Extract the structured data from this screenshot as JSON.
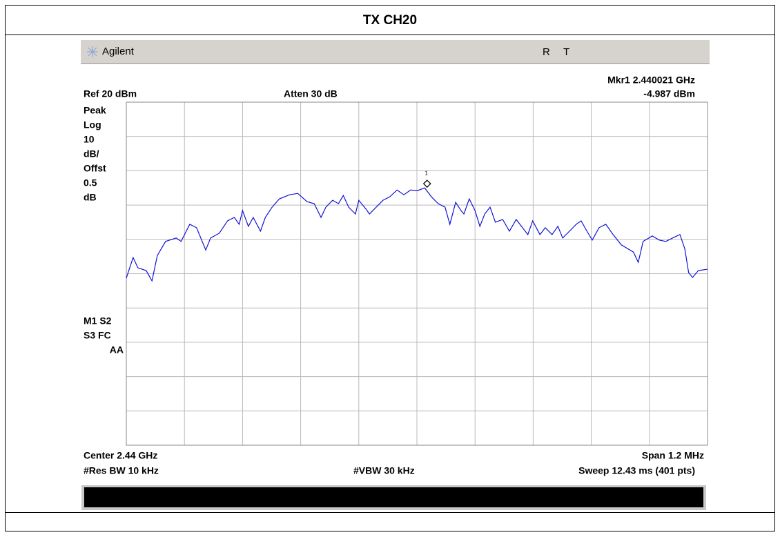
{
  "header": {
    "title": "TX CH20"
  },
  "instrument": {
    "brand": "Agilent",
    "status": [
      "R",
      "T"
    ],
    "marker_readout": "Mkr1  2.440021 GHz",
    "ref_level": "Ref 20 dBm",
    "attenuation": "Atten 30 dB",
    "marker_value": "-4.987 dBm",
    "left_panel": [
      "Peak",
      "Log",
      "10",
      "dB/",
      "Offst",
      "0.5",
      "dB"
    ],
    "left_status": [
      "M1  S2",
      "S3  FC",
      "AA"
    ],
    "center": "Center 2.44 GHz",
    "span": "Span 1.2 MHz",
    "rbw": "#Res BW 10 kHz",
    "vbw": "#VBW 30 kHz",
    "sweep": "Sweep 12.43 ms (401 pts)"
  },
  "trace": {
    "xlim": [
      -600,
      600
    ],
    "ref_level": 20,
    "db_per_div": 10,
    "x_khz": [
      -600,
      -586,
      -576,
      -559,
      -547,
      -536,
      -519,
      -497,
      -487,
      -469,
      -455,
      -436,
      -426,
      -408,
      -391,
      -377,
      -367,
      -360,
      -348,
      -338,
      -323,
      -313,
      -299,
      -284,
      -263,
      -246,
      -227,
      -212,
      -198,
      -188,
      -174,
      -162,
      -152,
      -141,
      -127,
      -120,
      -105,
      -98,
      -84,
      -70,
      -56,
      -41,
      -27,
      -13,
      1,
      16,
      30,
      44,
      58,
      68,
      80,
      91,
      97,
      108,
      120,
      130,
      140,
      151,
      162,
      177,
      191,
      205,
      218,
      229,
      239,
      254,
      265,
      279,
      291,
      301,
      315,
      329,
      339,
      351,
      362,
      376,
      390,
      405,
      422,
      447,
      457,
      467,
      486,
      500,
      514,
      528,
      543,
      553,
      561,
      569,
      581,
      600
    ],
    "dbm": [
      -31.3,
      -25.3,
      -28.3,
      -29.1,
      -32.1,
      -24.7,
      -20.6,
      -19.6,
      -20.6,
      -15.6,
      -16.6,
      -23.1,
      -19.6,
      -18.2,
      -14.6,
      -13.6,
      -15.6,
      -11.6,
      -16.2,
      -13.6,
      -17.6,
      -13.6,
      -10.6,
      -8.2,
      -7.0,
      -6.6,
      -9.0,
      -9.6,
      -13.6,
      -10.6,
      -8.6,
      -9.6,
      -7.2,
      -10.6,
      -12.6,
      -8.6,
      -11.2,
      -12.6,
      -10.6,
      -8.6,
      -7.6,
      -5.6,
      -7.0,
      -5.6,
      -5.8,
      -5.0,
      -7.6,
      -9.6,
      -10.6,
      -15.6,
      -9.2,
      -11.6,
      -12.6,
      -8.2,
      -11.6,
      -16.2,
      -12.6,
      -10.6,
      -15.0,
      -14.2,
      -17.6,
      -14.2,
      -16.6,
      -18.6,
      -14.6,
      -18.6,
      -16.6,
      -18.6,
      -16.2,
      -19.6,
      -17.6,
      -15.6,
      -14.6,
      -17.6,
      -20.2,
      -16.6,
      -15.6,
      -18.6,
      -21.6,
      -23.7,
      -26.7,
      -20.6,
      -19.0,
      -20.2,
      -20.6,
      -19.6,
      -18.6,
      -22.7,
      -29.7,
      -31.1,
      -29.1,
      -28.7
    ],
    "marker": {
      "label": "1",
      "x_khz": 21,
      "dbm": -4.987
    }
  }
}
